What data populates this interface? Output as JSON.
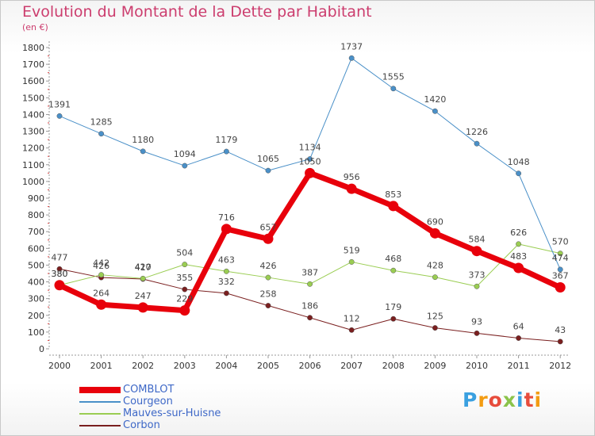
{
  "title": "Evolution du Montant de la Dette par Habitant",
  "subtitle": "(en €)",
  "logo": {
    "text": "Proxiti",
    "colors": [
      "#3aa0e0",
      "#f39c12",
      "#e74c3c",
      "#8bc34a",
      "#3aa0e0",
      "#e74c3c",
      "#f39c12"
    ]
  },
  "chart_data": {
    "type": "line",
    "title": "Evolution du Montant de la Dette par Habitant",
    "ylabel": "(en €)",
    "x": [
      "2000",
      "2001",
      "2002",
      "2003",
      "2004",
      "2005",
      "2006",
      "2007",
      "2008",
      "2009",
      "2010",
      "2011",
      "2012"
    ],
    "ylim": [
      0,
      1800
    ],
    "yticks": [
      0,
      100,
      200,
      300,
      400,
      500,
      600,
      700,
      800,
      900,
      1000,
      1100,
      1200,
      1300,
      1400,
      1500,
      1600,
      1700,
      1800
    ],
    "grid": false,
    "legend": "bottom-left",
    "series": [
      {
        "name": "COMBLOT",
        "color": "#e8000b",
        "values": [
          380,
          264,
          247,
          229,
          716,
          657,
          1050,
          956,
          853,
          690,
          584,
          483,
          367
        ]
      },
      {
        "name": "Courgeon",
        "color": "#4a90c8",
        "values": [
          1391,
          1285,
          1180,
          1094,
          1179,
          1065,
          1134,
          1737,
          1555,
          1420,
          1226,
          1048,
          474
        ]
      },
      {
        "name": "Mauves-sur-Huisne",
        "color": "#9acd52",
        "values": [
          380,
          442,
          420,
          504,
          463,
          426,
          387,
          519,
          468,
          428,
          373,
          626,
          570
        ]
      },
      {
        "name": "Corbon",
        "color": "#7a1f1f",
        "values": [
          477,
          426,
          417,
          355,
          332,
          258,
          186,
          112,
          179,
          125,
          93,
          64,
          43
        ]
      }
    ],
    "data_labels": [
      [
        "380",
        "264",
        "247",
        "229",
        "716",
        "657",
        "1050",
        "956",
        "853",
        "690",
        "584",
        "483",
        "367"
      ],
      [
        "1391",
        "1285",
        "1180",
        "1094",
        "1179",
        "1065",
        "1134",
        "1737",
        "1555",
        "1420",
        "1226",
        "1048",
        "474"
      ],
      [
        "380",
        "442",
        "420",
        "504",
        "463",
        "426",
        "387",
        "519",
        "468",
        "428",
        "373",
        "626",
        "570"
      ],
      [
        "477",
        "426",
        "417",
        "355",
        "332",
        "258",
        "186",
        "112",
        "179",
        "125",
        "93",
        "64",
        "43"
      ]
    ]
  }
}
